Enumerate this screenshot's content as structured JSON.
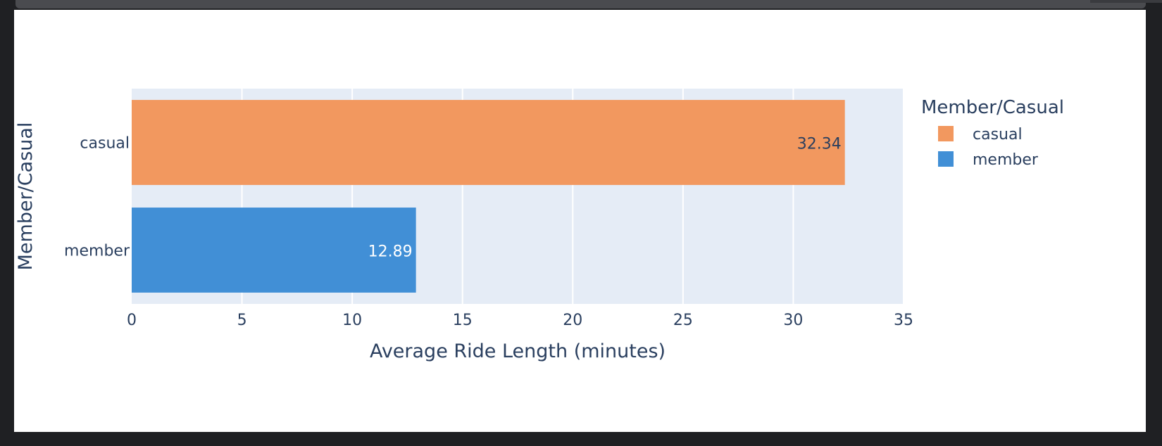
{
  "chart_data": {
    "type": "bar",
    "orientation": "horizontal",
    "categories": [
      "casual",
      "member"
    ],
    "values": [
      32.34,
      12.89
    ],
    "data_labels": [
      "32.34",
      "12.89"
    ],
    "colors": [
      "#f2985f",
      "#418fd6"
    ],
    "xlabel": "Average Ride Length (minutes)",
    "ylabel": "Member/Casual",
    "xlim": [
      0,
      35
    ],
    "xticks": [
      0,
      5,
      10,
      15,
      20,
      25,
      30,
      35
    ],
    "grid": true,
    "legend": {
      "title": "Member/Casual",
      "placement": "right",
      "entries": [
        "casual",
        "member"
      ]
    }
  }
}
